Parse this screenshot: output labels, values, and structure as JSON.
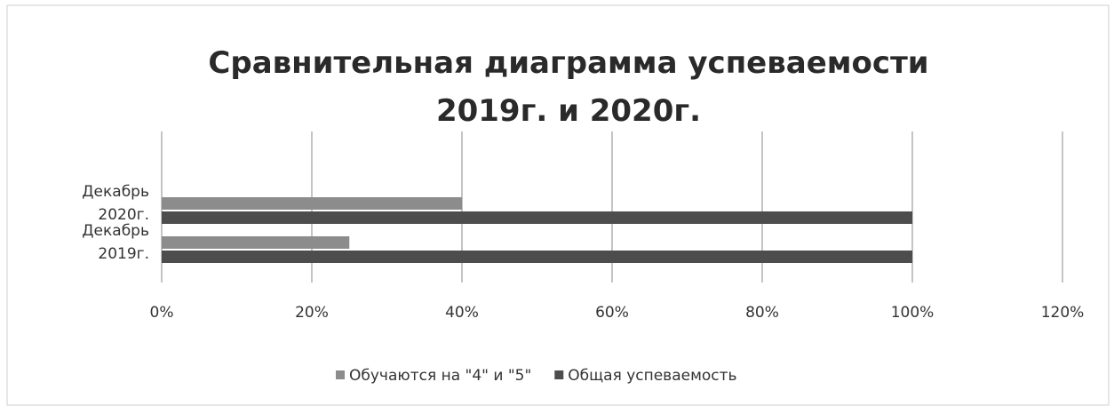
{
  "chart_data": {
    "type": "hbar",
    "title": "Сравнительная диаграмма успеваемости 2019г. и 2020г.",
    "categories": [
      "Декабрь 2019г.",
      "Декабрь 2020г."
    ],
    "series": [
      {
        "name": "Обучаются на \"4\" и \"5\"",
        "color": "#8c8c8c",
        "values": [
          25,
          40
        ]
      },
      {
        "name": "Общая успеваемость",
        "color": "#4d4d4d",
        "values": [
          100,
          100
        ]
      }
    ],
    "xlim": [
      0,
      120
    ],
    "xticks": [
      {
        "value": 0,
        "label": "0%"
      },
      {
        "value": 20,
        "label": "20%"
      },
      {
        "value": 40,
        "label": "40%"
      },
      {
        "value": 60,
        "label": "60%"
      },
      {
        "value": 80,
        "label": "80%"
      },
      {
        "value": 100,
        "label": "100%"
      },
      {
        "value": 120,
        "label": "120%"
      }
    ],
    "grid": true,
    "legend": "bottom"
  }
}
